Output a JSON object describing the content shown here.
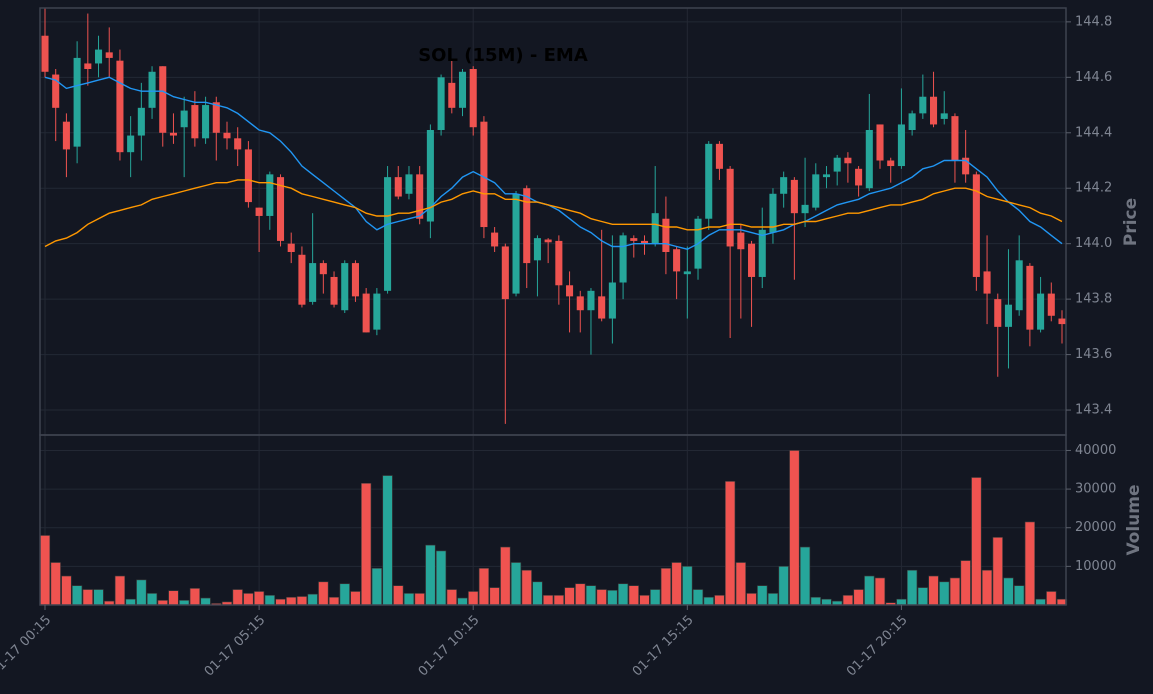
{
  "chart_data": [
    {
      "type": "candlestick",
      "title": "SOL (15M) - EMA",
      "ylabel": "Price",
      "categories": [
        "01-17 00:15",
        null,
        null,
        null,
        null,
        null,
        null,
        null,
        null,
        null,
        null,
        null,
        null,
        null,
        null,
        null,
        null,
        null,
        null,
        null,
        "01-17 05:15",
        null,
        null,
        null,
        null,
        null,
        null,
        null,
        null,
        null,
        null,
        null,
        null,
        null,
        null,
        null,
        null,
        null,
        null,
        null,
        "01-17 10:15",
        null,
        null,
        null,
        null,
        null,
        null,
        null,
        null,
        null,
        null,
        null,
        null,
        null,
        null,
        null,
        null,
        null,
        null,
        null,
        "01-17 15:15",
        null,
        null,
        null,
        null,
        null,
        null,
        null,
        null,
        null,
        null,
        null,
        null,
        null,
        null,
        null,
        null,
        null,
        null,
        null,
        "01-17 20:15",
        null,
        null,
        null,
        null,
        null,
        null,
        null,
        null,
        null,
        null,
        null,
        null,
        null,
        null,
        null
      ],
      "open": [
        144.75,
        144.61,
        144.44,
        144.35,
        144.65,
        144.65,
        144.69,
        144.66,
        144.33,
        144.39,
        144.49,
        144.64,
        144.4,
        144.42,
        144.5,
        144.38,
        144.51,
        144.4,
        144.38,
        144.34,
        144.13,
        144.1,
        144.24,
        144.0,
        143.96,
        143.79,
        143.93,
        143.88,
        143.76,
        143.93,
        143.82,
        143.69,
        143.83,
        144.24,
        144.18,
        144.25,
        144.08,
        144.41,
        144.58,
        144.49,
        144.63,
        144.44,
        144.04,
        143.99,
        143.82,
        144.2,
        143.94,
        144.015,
        144.01,
        143.85,
        143.81,
        143.76,
        143.81,
        143.73,
        143.86,
        144.02,
        144.01,
        144.0,
        144.09,
        143.98,
        143.89,
        143.91,
        144.09,
        144.36,
        144.27,
        144.04,
        144.0,
        143.88,
        144.04,
        144.18,
        144.23,
        144.11,
        144.13,
        144.24,
        144.26,
        144.31,
        144.27,
        144.2,
        144.43,
        144.3,
        144.28,
        144.41,
        144.47,
        144.53,
        144.45,
        144.46,
        144.31,
        144.25,
        143.9,
        143.8,
        143.7,
        143.76,
        143.92,
        143.69,
        143.82,
        143.73
      ],
      "high": [
        144.85,
        144.63,
        144.47,
        144.73,
        144.83,
        144.75,
        144.78,
        144.7,
        144.46,
        144.58,
        144.64,
        144.64,
        144.47,
        144.53,
        144.55,
        144.53,
        144.53,
        144.44,
        144.42,
        144.37,
        144.13,
        144.26,
        144.25,
        144.04,
        143.99,
        144.11,
        143.94,
        143.9,
        143.94,
        143.94,
        143.84,
        143.84,
        144.28,
        144.28,
        144.28,
        144.28,
        144.43,
        144.61,
        144.66,
        144.63,
        144.64,
        144.46,
        144.06,
        144.0,
        144.19,
        144.21,
        144.03,
        144.02,
        144.03,
        143.9,
        143.83,
        143.84,
        144.05,
        144.03,
        144.04,
        144.03,
        144.03,
        144.28,
        144.17,
        143.99,
        143.99,
        144.1,
        144.37,
        144.37,
        144.28,
        144.07,
        144.01,
        144.13,
        144.2,
        144.26,
        144.24,
        144.31,
        144.29,
        144.28,
        144.32,
        144.33,
        144.28,
        144.54,
        144.43,
        144.31,
        144.56,
        144.48,
        144.61,
        144.62,
        144.55,
        144.47,
        144.41,
        144.26,
        144.03,
        143.82,
        143.98,
        144.03,
        143.93,
        143.88,
        143.86,
        143.76
      ],
      "low": [
        144.6,
        144.37,
        144.24,
        144.29,
        144.57,
        144.6,
        144.6,
        144.3,
        144.24,
        144.3,
        144.45,
        144.35,
        144.36,
        144.24,
        144.35,
        144.36,
        144.3,
        144.34,
        144.28,
        144.13,
        143.97,
        144.05,
        143.99,
        143.93,
        143.77,
        143.78,
        143.82,
        143.77,
        143.75,
        143.79,
        143.68,
        143.67,
        143.82,
        144.16,
        144.16,
        144.07,
        144.02,
        144.39,
        144.47,
        144.46,
        144.39,
        144.02,
        143.97,
        143.35,
        143.81,
        143.84,
        143.81,
        143.93,
        143.78,
        143.68,
        143.68,
        143.6,
        143.72,
        143.64,
        143.8,
        143.95,
        143.96,
        143.99,
        143.89,
        143.8,
        143.73,
        143.87,
        144.05,
        144.23,
        143.66,
        143.73,
        143.7,
        143.84,
        144.0,
        144.13,
        143.87,
        144.06,
        144.12,
        144.2,
        144.21,
        144.22,
        144.17,
        144.19,
        144.27,
        144.22,
        144.27,
        144.39,
        144.45,
        144.42,
        144.43,
        144.22,
        144.22,
        143.83,
        143.71,
        143.52,
        143.55,
        143.74,
        143.63,
        143.68,
        143.72,
        143.64
      ],
      "close": [
        144.62,
        144.49,
        144.34,
        144.67,
        144.63,
        144.7,
        144.67,
        144.33,
        144.39,
        144.49,
        144.62,
        144.4,
        144.39,
        144.48,
        144.38,
        144.5,
        144.4,
        144.38,
        144.34,
        144.15,
        144.1,
        144.25,
        144.01,
        143.97,
        143.78,
        143.93,
        143.89,
        143.78,
        143.93,
        143.81,
        143.68,
        143.82,
        144.24,
        144.17,
        144.25,
        144.09,
        144.41,
        144.6,
        144.49,
        144.62,
        144.42,
        144.06,
        143.99,
        143.8,
        144.18,
        143.93,
        144.02,
        144.005,
        143.85,
        143.81,
        143.76,
        143.83,
        143.73,
        143.86,
        144.03,
        144.01,
        144.0,
        144.11,
        143.97,
        143.9,
        143.9,
        144.09,
        144.36,
        144.27,
        143.99,
        143.98,
        143.88,
        144.05,
        144.18,
        144.24,
        144.11,
        144.14,
        144.25,
        144.25,
        144.31,
        144.29,
        144.21,
        144.41,
        144.3,
        144.28,
        144.43,
        144.47,
        144.53,
        144.43,
        144.47,
        144.3,
        144.25,
        143.88,
        143.82,
        143.7,
        143.78,
        143.94,
        143.69,
        143.82,
        143.74,
        143.71
      ],
      "up_color": "#26a69a",
      "down_color": "#ef5350",
      "lines": [
        {
          "color": "#2196f3",
          "values": [
            144.6,
            144.59,
            144.56,
            144.57,
            144.58,
            144.59,
            144.6,
            144.58,
            144.56,
            144.55,
            144.55,
            144.55,
            144.53,
            144.52,
            144.51,
            144.51,
            144.5,
            144.49,
            144.47,
            144.44,
            144.41,
            144.4,
            144.37,
            144.33,
            144.28,
            144.25,
            144.22,
            144.19,
            144.16,
            144.13,
            144.08,
            144.05,
            144.07,
            144.08,
            144.09,
            144.1,
            144.13,
            144.17,
            144.2,
            144.24,
            144.26,
            144.24,
            144.22,
            144.18,
            144.18,
            144.17,
            144.15,
            144.14,
            144.12,
            144.09,
            144.06,
            144.04,
            144.01,
            143.99,
            143.99,
            144.0,
            144.0,
            144.0,
            144.0,
            143.99,
            143.98,
            144.0,
            144.03,
            144.05,
            144.05,
            144.05,
            144.04,
            144.03,
            144.04,
            144.05,
            144.07,
            144.08,
            144.1,
            144.12,
            144.14,
            144.15,
            144.16,
            144.18,
            144.19,
            144.2,
            144.22,
            144.24,
            144.27,
            144.28,
            144.3,
            144.3,
            144.3,
            144.27,
            144.24,
            144.19,
            144.15,
            144.12,
            144.08,
            144.06,
            144.03,
            144.0
          ]
        },
        {
          "color": "#ff9800",
          "values": [
            143.99,
            144.01,
            144.02,
            144.04,
            144.07,
            144.09,
            144.11,
            144.12,
            144.13,
            144.14,
            144.16,
            144.17,
            144.18,
            144.19,
            144.2,
            144.21,
            144.22,
            144.22,
            144.23,
            144.23,
            144.22,
            144.22,
            144.21,
            144.2,
            144.18,
            144.17,
            144.16,
            144.15,
            144.14,
            144.13,
            144.11,
            144.1,
            144.1,
            144.11,
            144.11,
            144.12,
            144.13,
            144.15,
            144.16,
            144.18,
            144.19,
            144.18,
            144.18,
            144.16,
            144.16,
            144.15,
            144.15,
            144.14,
            144.13,
            144.12,
            144.11,
            144.09,
            144.08,
            144.07,
            144.07,
            144.07,
            144.07,
            144.07,
            144.06,
            144.06,
            144.05,
            144.05,
            144.06,
            144.06,
            144.07,
            144.07,
            144.06,
            144.06,
            144.06,
            144.07,
            144.07,
            144.08,
            144.08,
            144.09,
            144.1,
            144.11,
            144.11,
            144.12,
            144.13,
            144.14,
            144.14,
            144.15,
            144.16,
            144.18,
            144.19,
            144.2,
            144.2,
            144.19,
            144.17,
            144.16,
            144.15,
            144.14,
            144.13,
            144.11,
            144.1,
            144.08
          ]
        }
      ],
      "ylim": [
        143.31,
        144.85
      ],
      "yticks": [
        143.4,
        143.6,
        143.8,
        {
          "value": 144,
          "label": "144.0"
        },
        144.2,
        144.4,
        144.6,
        144.8
      ],
      "grid": true
    },
    {
      "type": "bar",
      "ylabel": "Volume",
      "values": [
        18000,
        11000,
        7500,
        5000,
        4000,
        4000,
        1000,
        7500,
        1500,
        6500,
        3000,
        1200,
        3700,
        1200,
        4300,
        1800,
        400,
        800,
        4000,
        3000,
        3500,
        2500,
        1500,
        2000,
        2200,
        2800,
        6000,
        2000,
        5500,
        3500,
        31500,
        9500,
        33500,
        5000,
        3000,
        3000,
        15500,
        14000,
        4000,
        1800,
        3500,
        9500,
        4500,
        15000,
        11000,
        9000,
        6000,
        2500,
        2500,
        4500,
        5500,
        5000,
        4000,
        3800,
        5500,
        5000,
        2500,
        4000,
        9500,
        11000,
        10000,
        4000,
        2000,
        2500,
        32000,
        11000,
        3000,
        5000,
        3000,
        10000,
        40000,
        15000,
        2000,
        1500,
        1000,
        2500,
        4000,
        7500,
        7000,
        600,
        1500,
        9000,
        4500,
        7500,
        6000,
        7000,
        11500,
        33000,
        9000,
        17500,
        7000,
        5000,
        21500,
        1500,
        3500,
        1500
      ],
      "ylim": [
        0,
        44000
      ],
      "yticks": [
        10000,
        20000,
        30000,
        40000
      ],
      "grid": true
    }
  ]
}
